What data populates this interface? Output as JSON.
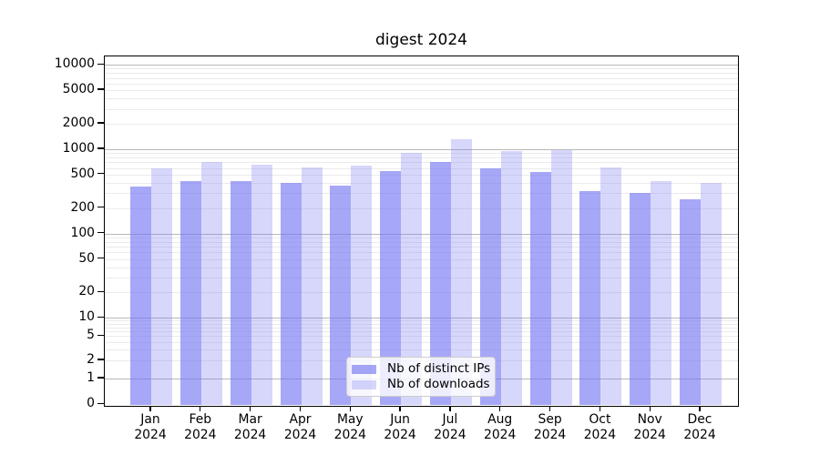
{
  "chart_data": {
    "type": "bar",
    "title": "digest 2024",
    "x_tick_months": [
      "Jan",
      "Feb",
      "Mar",
      "Apr",
      "May",
      "Jun",
      "Jul",
      "Aug",
      "Sep",
      "Oct",
      "Nov",
      "Dec"
    ],
    "x_tick_year": "2024",
    "series": [
      {
        "name": "Nb of distinct IPs",
        "values": [
          360,
          420,
          420,
          400,
          368,
          550,
          710,
          590,
          540,
          318,
          305,
          253
        ]
      },
      {
        "name": "Nb of downloads",
        "values": [
          595,
          700,
          650,
          610,
          645,
          905,
          1320,
          950,
          985,
          605,
          415,
          400
        ]
      }
    ],
    "y_ticks": [
      0,
      1,
      2,
      5,
      10,
      20,
      50,
      100,
      200,
      500,
      1000,
      2000,
      5000,
      10000
    ],
    "y_scale": "log above 1, linear 0-1",
    "ylim": [
      0,
      12500
    ],
    "grid": "on",
    "legend_position": "lower center",
    "colors": {
      "bar_distinct_ips_fill": "rgba(118,118,242,0.64)",
      "bar_downloads_fill": "rgba(118,118,242,0.29)",
      "bar_distinct_ips_hex": "#a7a7f5",
      "bar_downloads_hex": "#d7d7fa",
      "gridline_major": "#b8b8b8",
      "gridline_minor": "#ebebeb",
      "axis": "#000000"
    }
  }
}
